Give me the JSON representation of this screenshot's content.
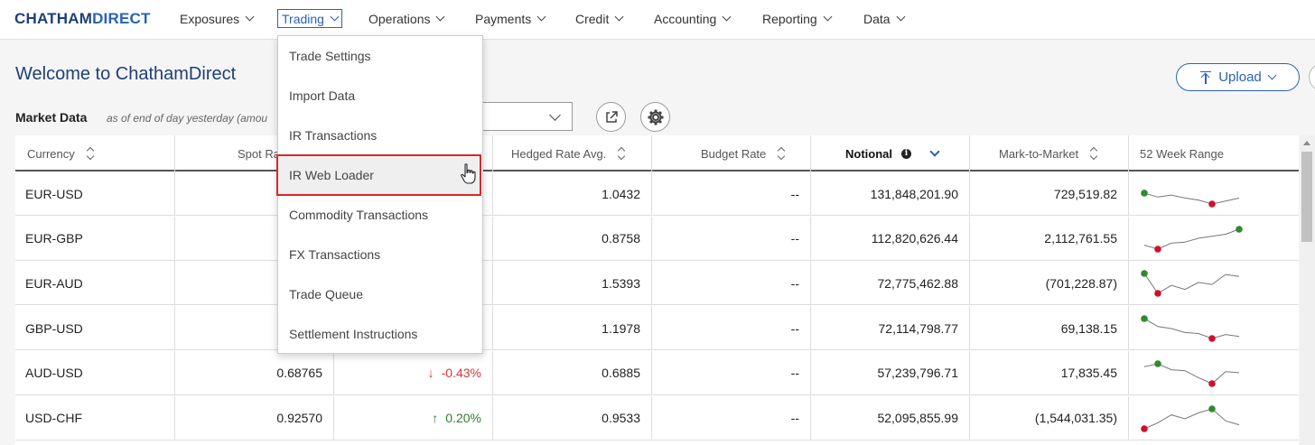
{
  "logo": {
    "part1": "CHATHAM",
    "part2": "DIRECT"
  },
  "nav": [
    {
      "label": "Exposures"
    },
    {
      "label": "Trading",
      "active": true
    },
    {
      "label": "Operations"
    },
    {
      "label": "Payments"
    },
    {
      "label": "Credit"
    },
    {
      "label": "Accounting"
    },
    {
      "label": "Reporting"
    },
    {
      "label": "Data"
    }
  ],
  "page": {
    "welcome": "Welcome to ChathamDirect",
    "upload_label": "Upload",
    "market_data_title": "Market Data",
    "market_data_subtitle": "as of end of day yesterday (amou"
  },
  "trading_menu": [
    "Trade Settings",
    "Import Data",
    "IR Transactions",
    "IR Web Loader",
    "Commodity Transactions",
    "FX Transactions",
    "Trade Queue",
    "Settlement Instructions"
  ],
  "highlighted_menu_item": "IR Web Loader",
  "table": {
    "columns": {
      "currency": "Currency",
      "spot": "Spot Ra",
      "hedged": "Hedged Rate Avg.",
      "budget": "Budget Rate",
      "notional": "Notional",
      "mtm": "Mark-to-Market",
      "range": "52 Week Range"
    },
    "rows": [
      {
        "currency": "EUR-USD",
        "spot": "",
        "change": "",
        "dir": "",
        "hedged": "1.0432",
        "budget": "--",
        "notional": "131,848,201.90",
        "mtm": "729,519.82",
        "spark": [
          0.55,
          0.35,
          0.45,
          0.3,
          0.2,
          0.0,
          0.15,
          0.3
        ]
      },
      {
        "currency": "EUR-GBP",
        "spot": "",
        "change": "",
        "dir": "",
        "hedged": "0.8758",
        "budget": "--",
        "notional": "112,820,626.44",
        "mtm": "2,112,761.55",
        "spark": [
          0.2,
          0.0,
          0.3,
          0.35,
          0.55,
          0.65,
          0.75,
          1.0
        ]
      },
      {
        "currency": "EUR-AUD",
        "spot": "",
        "change": "",
        "dir": "",
        "hedged": "1.5393",
        "budget": "--",
        "notional": "72,775,462.88",
        "mtm": "(701,228.87)",
        "spark": [
          1.0,
          0.0,
          0.4,
          0.2,
          0.55,
          0.45,
          0.95,
          0.85
        ]
      },
      {
        "currency": "GBP-USD",
        "spot": "",
        "change": "",
        "dir": "",
        "hedged": "1.1978",
        "budget": "--",
        "notional": "72,114,798.77",
        "mtm": "69,138.15",
        "spark": [
          1.0,
          0.6,
          0.5,
          0.3,
          0.25,
          0.0,
          0.2,
          0.1
        ]
      },
      {
        "currency": "AUD-USD",
        "spot": "0.68765",
        "change": "-0.43%",
        "dir": "down",
        "hedged": "0.6885",
        "budget": "--",
        "notional": "57,239,796.71",
        "mtm": "17,835.45",
        "spark": [
          0.85,
          1.0,
          0.7,
          0.65,
          0.3,
          0.0,
          0.6,
          0.55
        ]
      },
      {
        "currency": "USD-CHF",
        "spot": "0.92570",
        "change": "0.20%",
        "dir": "up",
        "hedged": "0.9533",
        "budget": "--",
        "notional": "52,095,855.99",
        "mtm": "(1,544,031.35)",
        "spark": [
          0.0,
          0.3,
          0.7,
          0.5,
          0.8,
          1.0,
          0.4,
          0.2
        ]
      }
    ]
  },
  "colors": {
    "brand": "#1f3f77",
    "accent": "#2a62b5",
    "negative": "#d33333",
    "positive": "#2f7d32",
    "highlight_border": "#d42a2a"
  }
}
